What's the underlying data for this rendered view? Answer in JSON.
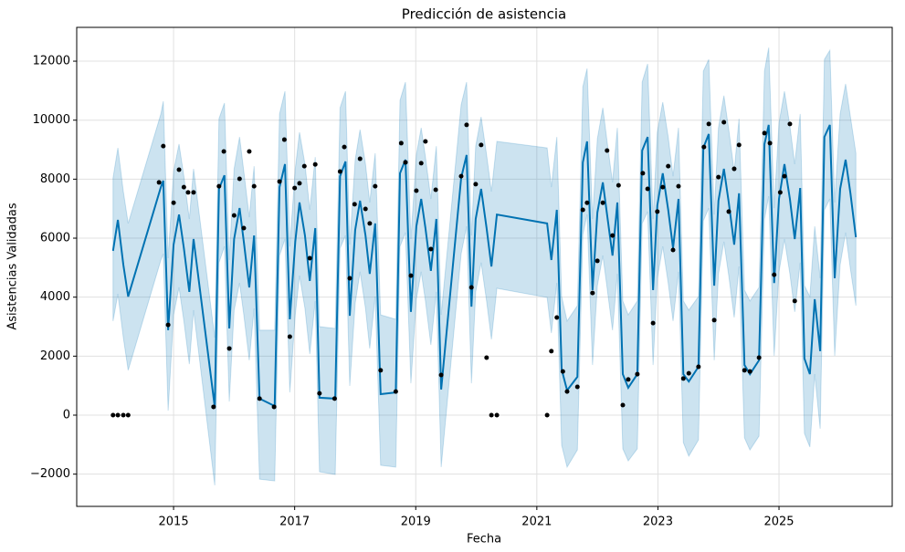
{
  "chart_data": {
    "type": "line",
    "title": "Predicción de asistencia",
    "x_label": "Fecha",
    "y_label": "Asistencias Validadas",
    "xlim": [
      2013.4,
      2026.87
    ],
    "xticks": [
      2015,
      2017,
      2019,
      2021,
      2023,
      2025
    ],
    "ylim": [
      -3093,
      13146
    ],
    "yticks": [
      {
        "value": -2000,
        "label": "−2000"
      },
      0,
      2000,
      4000,
      6000,
      8000,
      10000,
      12000
    ],
    "grid": true,
    "observed": {
      "color": "#000000",
      "x": [
        2014.0,
        2014.08,
        2014.17,
        2014.25,
        2014.76,
        2014.83,
        2014.91,
        2015.0,
        2015.09,
        2015.17,
        2015.24,
        2015.33,
        2015.66,
        2015.75,
        2015.83,
        2015.92,
        2016.0,
        2016.09,
        2016.16,
        2016.25,
        2016.33,
        2016.42,
        2016.66,
        2016.75,
        2016.83,
        2016.92,
        2017.0,
        2017.08,
        2017.16,
        2017.25,
        2017.34,
        2017.41,
        2017.66,
        2017.75,
        2017.82,
        2017.91,
        2017.99,
        2018.08,
        2018.17,
        2018.24,
        2018.33,
        2018.42,
        2018.67,
        2018.76,
        2018.83,
        2018.92,
        2019.01,
        2019.09,
        2019.16,
        2019.25,
        2019.33,
        2019.42,
        2019.75,
        2019.84,
        2019.92,
        2019.99,
        2020.08,
        2020.17,
        2020.25,
        2020.34,
        2021.17,
        2021.24,
        2021.33,
        2021.43,
        2021.5,
        2021.67,
        2021.76,
        2021.83,
        2021.92,
        2022.0,
        2022.09,
        2022.16,
        2022.25,
        2022.35,
        2022.42,
        2022.51,
        2022.66,
        2022.75,
        2022.83,
        2022.92,
        2022.99,
        2023.08,
        2023.17,
        2023.25,
        2023.34,
        2023.42,
        2023.51,
        2023.67,
        2023.76,
        2023.84,
        2023.93,
        2024.0,
        2024.09,
        2024.17,
        2024.26,
        2024.34,
        2024.43,
        2024.52,
        2024.67,
        2024.76,
        2024.85,
        2024.92,
        2025.02,
        2025.09,
        2025.18,
        2025.26
      ],
      "values": [
        0,
        0,
        0,
        0,
        7890,
        9120,
        3060,
        7200,
        8320,
        7730,
        7550,
        7550,
        280,
        7760,
        8940,
        2260,
        6770,
        8010,
        6340,
        8940,
        7760,
        560,
        280,
        7920,
        9340,
        2660,
        7700,
        7860,
        8440,
        5320,
        8500,
        740,
        560,
        8260,
        9090,
        4640,
        7150,
        8690,
        6990,
        6500,
        7760,
        1520,
        800,
        9220,
        8570,
        4730,
        7610,
        8540,
        9280,
        5630,
        7640,
        1360,
        8100,
        9840,
        4330,
        7830,
        9160,
        1950,
        0,
        0,
        0,
        2170,
        3310,
        1480,
        800,
        960,
        6960,
        7200,
        4140,
        5230,
        7200,
        8970,
        6090,
        7790,
        340,
        1210,
        1390,
        8200,
        7670,
        3120,
        6900,
        7730,
        8440,
        5600,
        7760,
        1240,
        1420,
        1640,
        9090,
        9870,
        3220,
        8070,
        9930,
        6900,
        8350,
        9160,
        1520,
        1480,
        1950,
        9560,
        9220,
        4760,
        7550,
        8100,
        9870,
        3870
      ]
    },
    "forecast": {
      "color": "#0072b2",
      "band_color": "#0072b2",
      "x": [
        2014.0,
        2014.08,
        2014.17,
        2014.25,
        2014.79,
        2014.83,
        2014.91,
        2015.0,
        2015.09,
        2015.17,
        2015.26,
        2015.33,
        2015.68,
        2015.75,
        2015.84,
        2015.92,
        2016.0,
        2016.09,
        2016.16,
        2016.25,
        2016.33,
        2016.42,
        2016.67,
        2016.75,
        2016.84,
        2016.92,
        2017.01,
        2017.08,
        2017.17,
        2017.25,
        2017.34,
        2017.41,
        2017.67,
        2017.75,
        2017.84,
        2017.91,
        2018.0,
        2018.08,
        2018.17,
        2018.24,
        2018.33,
        2018.42,
        2018.67,
        2018.74,
        2018.83,
        2018.92,
        2019.01,
        2019.09,
        2019.16,
        2019.25,
        2019.34,
        2019.42,
        2019.75,
        2019.84,
        2019.92,
        2019.99,
        2020.08,
        2020.17,
        2020.25,
        2020.34,
        2021.17,
        2021.24,
        2021.33,
        2021.41,
        2021.5,
        2021.67,
        2021.76,
        2021.83,
        2021.92,
        2022.0,
        2022.09,
        2022.16,
        2022.25,
        2022.33,
        2022.42,
        2022.51,
        2022.66,
        2022.74,
        2022.83,
        2022.92,
        2022.99,
        2023.08,
        2023.17,
        2023.25,
        2023.34,
        2023.42,
        2023.51,
        2023.67,
        2023.75,
        2023.84,
        2023.93,
        2024.0,
        2024.09,
        2024.17,
        2024.26,
        2024.34,
        2024.43,
        2024.52,
        2024.67,
        2024.76,
        2024.83,
        2024.92,
        2025.0,
        2025.09,
        2025.18,
        2025.26,
        2025.35,
        2025.42,
        2025.51,
        2025.59,
        2025.68,
        2025.75,
        2025.84,
        2025.92,
        2026.01,
        2026.1,
        2026.18,
        2026.27
      ],
      "values": [
        5570,
        6620,
        5100,
        4020,
        7730,
        7950,
        2880,
        5780,
        6800,
        5660,
        4180,
        5970,
        280,
        7670,
        8130,
        2940,
        5970,
        7020,
        5880,
        4330,
        6090,
        560,
        310,
        7730,
        8510,
        3250,
        5880,
        7210,
        6090,
        4550,
        6340,
        590,
        560,
        8100,
        8600,
        3370,
        6280,
        7270,
        6090,
        4790,
        6500,
        710,
        770,
        8200,
        8660,
        3500,
        6400,
        7330,
        6340,
        4890,
        6650,
        870,
        8040,
        8820,
        3680,
        6650,
        7670,
        6340,
        5040,
        6800,
        6500,
        5260,
        6960,
        1550,
        840,
        1300,
        8570,
        9280,
        4240,
        6870,
        7890,
        6800,
        5410,
        7210,
        1390,
        930,
        1390,
        8970,
        9430,
        4240,
        7110,
        8200,
        6960,
        5660,
        7330,
        1390,
        1140,
        1640,
        9060,
        9530,
        4390,
        7270,
        8350,
        7210,
        5780,
        7520,
        1700,
        1390,
        1860,
        9190,
        9840,
        4480,
        7330,
        8510,
        7330,
        5970,
        7700,
        1920,
        1390,
        3930,
        2170,
        9430,
        9840,
        4640,
        7670,
        8660,
        7520,
        6030
      ],
      "upper": [
        8040,
        9060,
        7580,
        6500,
        10210,
        10640,
        5320,
        8260,
        9190,
        8100,
        6650,
        8350,
        2630,
        10050,
        10580,
        5260,
        8350,
        9430,
        8260,
        6710,
        8440,
        2880,
        2880,
        10210,
        10980,
        5720,
        8350,
        9590,
        8510,
        6960,
        8750,
        3000,
        2940,
        10420,
        10980,
        5780,
        8660,
        9680,
        8510,
        7210,
        8880,
        3400,
        3250,
        10670,
        11290,
        5970,
        8820,
        9740,
        8750,
        7330,
        9120,
        3400,
        10520,
        11290,
        6090,
        9120,
        10110,
        8820,
        7580,
        9280,
        9060,
        7730,
        9430,
        4020,
        3190,
        3710,
        11130,
        11750,
        6650,
        9370,
        10420,
        9280,
        7890,
        9740,
        3870,
        3400,
        3870,
        11290,
        11910,
        6650,
        9590,
        10610,
        9430,
        8100,
        9740,
        3870,
        3560,
        4020,
        11660,
        12060,
        6800,
        9740,
        10830,
        9680,
        8260,
        10050,
        4240,
        3870,
        4330,
        11660,
        12460,
        7020,
        9900,
        10980,
        9800,
        8510,
        10210,
        4390,
        4020,
        6400,
        4640,
        12060,
        12370,
        7210,
        10210,
        11230,
        10110,
        8880
      ],
      "lower": [
        3190,
        4110,
        2630,
        1520,
        5260,
        5470,
        150,
        3400,
        4330,
        3190,
        1730,
        3560,
        -2380,
        5170,
        5720,
        460,
        3560,
        4480,
        3400,
        1860,
        3620,
        -2170,
        -2230,
        5410,
        5970,
        770,
        3400,
        4730,
        3620,
        2070,
        3870,
        -1920,
        -2010,
        5660,
        6090,
        990,
        3800,
        4860,
        3620,
        2260,
        4020,
        -1700,
        -1760,
        5720,
        6190,
        1080,
        3930,
        4860,
        3870,
        2380,
        4180,
        -1760,
        5470,
        6400,
        1080,
        4180,
        5170,
        3870,
        2570,
        4300,
        3990,
        2780,
        4480,
        -1020,
        -1760,
        -1180,
        6120,
        6800,
        1700,
        4390,
        5410,
        4330,
        2880,
        4790,
        -1140,
        -1550,
        -1140,
        6500,
        6900,
        1700,
        4640,
        5720,
        4480,
        3190,
        4860,
        -930,
        -1390,
        -840,
        6590,
        7020,
        1860,
        4790,
        5880,
        4730,
        3310,
        5040,
        -770,
        -1180,
        -710,
        6650,
        7420,
        2010,
        4860,
        5970,
        4790,
        3500,
        5170,
        -620,
        -1080,
        1390,
        -460,
        6960,
        7330,
        2010,
        5100,
        6190,
        4950,
        3710
      ]
    }
  }
}
